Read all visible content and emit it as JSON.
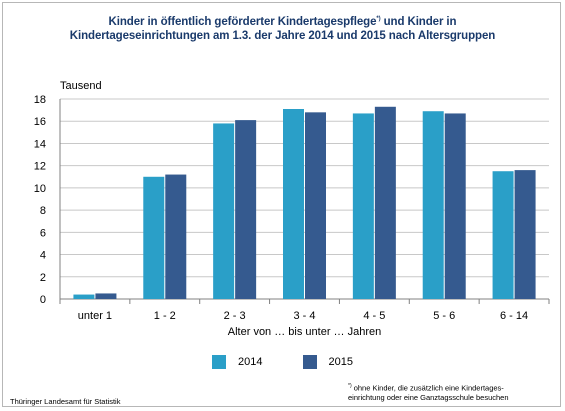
{
  "title_line1": "Kinder in öffentlich geförderter Kindertagespflege",
  "title_mark": "*)",
  "title_line1_end": " und Kinder in",
  "title_line2": "Kindertageseinrichtungen am 1.3. der Jahre 2014 und 2015 nach Altersgruppen",
  "source": "Thüringer Landesamt  für Statistik",
  "footnote_mark": "*)",
  "footnote_line1": " ohne Kinder,  die zusätzlich eine Kindertages-",
  "footnote_line2": "einrichtung oder eine Ganztagsschule besuchen",
  "colors": {
    "2014": "#2a9fc8",
    "2015": "#355a8f",
    "grid": "#c8c8c8",
    "axis": "#808080"
  },
  "chart_data": {
    "type": "bar",
    "ylabel": "Tausend",
    "xlabel": "Alter von … bis unter … Jahren",
    "ylim": [
      0,
      18
    ],
    "yticks": [
      0,
      2,
      4,
      6,
      8,
      10,
      12,
      14,
      16,
      18
    ],
    "grid": true,
    "legend_placement": "bottom-center",
    "categories": [
      "unter 1",
      "1 - 2",
      "2 - 3",
      "3 - 4",
      "4 - 5",
      "5 - 6",
      "6 - 14"
    ],
    "series": [
      {
        "name": "2014",
        "values": [
          0.4,
          11.0,
          15.8,
          17.1,
          16.7,
          16.9,
          11.5
        ]
      },
      {
        "name": "2015",
        "values": [
          0.5,
          11.2,
          16.1,
          16.8,
          17.3,
          16.7,
          11.6
        ]
      }
    ]
  }
}
